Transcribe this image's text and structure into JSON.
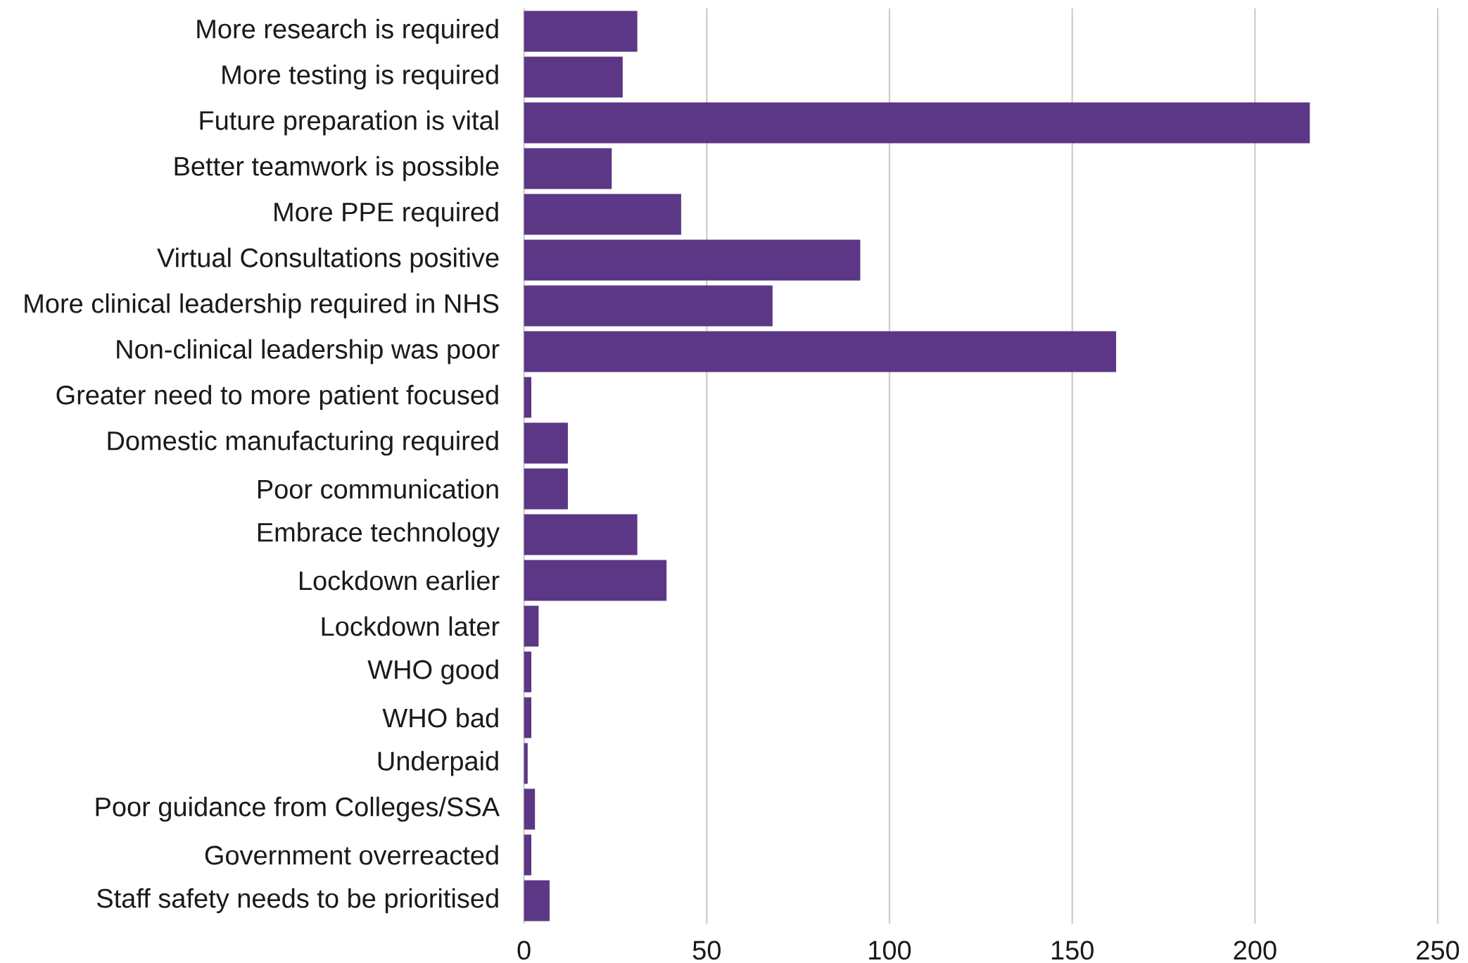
{
  "chart_data": {
    "type": "bar",
    "orientation": "horizontal",
    "categories": [
      "More research is  required",
      "More testing is required",
      "Future preparation is vital",
      "Better teamwork is possible",
      "More PPE required",
      "Virtual Consultations positive",
      "More clinical leadership required in NHS",
      "Non-clinical leadership was poor",
      "Greater need to more patient focused",
      "Domestic manufacturing required",
      "Poor communication",
      "Embrace technology",
      "Lockdown earlier",
      "Lockdown later",
      "WHO good",
      "WHO bad",
      "Underpaid",
      "Poor guidance from Colleges/SSA",
      "Government overreacted",
      "Staff safety needs to be prioritised"
    ],
    "values": [
      31,
      27,
      215,
      24,
      43,
      92,
      68,
      162,
      2,
      12,
      12,
      31,
      39,
      4,
      2,
      2,
      1,
      3,
      2,
      7
    ],
    "color": "#5c3785",
    "xlim": [
      0,
      250
    ],
    "xticks": [
      0,
      50,
      100,
      150,
      200,
      250
    ],
    "grid": "x"
  }
}
